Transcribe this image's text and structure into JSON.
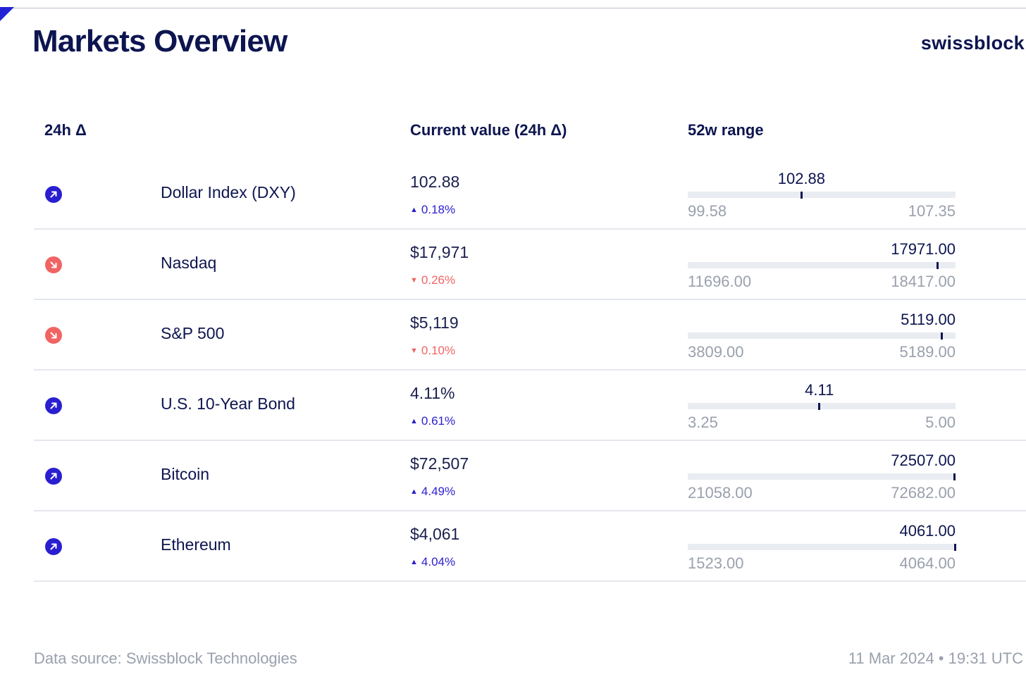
{
  "header": {
    "title": "Markets Overview",
    "logo": "swissblock"
  },
  "columns": {
    "delta": "24h Δ",
    "value": "Current value (24h Δ)",
    "range": "52w range"
  },
  "icons": {
    "up": "arrow-up-right-icon",
    "down": "arrow-down-right-icon"
  },
  "colors": {
    "up": "#2a1fd0",
    "down": "#f06464",
    "text": "#0d1550",
    "muted": "#9aa0ad"
  },
  "chart_data": {
    "type": "table",
    "title": "Markets Overview",
    "rows": [
      {
        "name": "Dollar Index (DXY)",
        "value": "102.88",
        "change": "0.18%",
        "direction": "up",
        "range_min": 99.58,
        "range_max": 107.35,
        "current": 102.88,
        "range_min_label": "99.58",
        "range_max_label": "107.35",
        "current_label": "102.88"
      },
      {
        "name": "Nasdaq",
        "value": "$17,971",
        "change": "0.26%",
        "direction": "down",
        "range_min": 11696.0,
        "range_max": 18417.0,
        "current": 17971.0,
        "range_min_label": "11696.00",
        "range_max_label": "18417.00",
        "current_label": "17971.00"
      },
      {
        "name": "S&P 500",
        "value": "$5,119",
        "change": "0.10%",
        "direction": "down",
        "range_min": 3809.0,
        "range_max": 5189.0,
        "current": 5119.0,
        "range_min_label": "3809.00",
        "range_max_label": "5189.00",
        "current_label": "5119.00"
      },
      {
        "name": "U.S. 10-Year Bond",
        "value": "4.11%",
        "change": "0.61%",
        "direction": "up",
        "range_min": 3.25,
        "range_max": 5.0,
        "current": 4.11,
        "range_min_label": "3.25",
        "range_max_label": "5.00",
        "current_label": "4.11"
      },
      {
        "name": "Bitcoin",
        "value": "$72,507",
        "change": "4.49%",
        "direction": "up",
        "range_min": 21058.0,
        "range_max": 72682.0,
        "current": 72507.0,
        "range_min_label": "21058.00",
        "range_max_label": "72682.00",
        "current_label": "72507.00"
      },
      {
        "name": "Ethereum",
        "value": "$4,061",
        "change": "4.04%",
        "direction": "up",
        "range_min": 1523.0,
        "range_max": 4064.0,
        "current": 4061.0,
        "range_min_label": "1523.00",
        "range_max_label": "4064.00",
        "current_label": "4061.00"
      }
    ]
  },
  "footer": {
    "source": "Data source: Swissblock Technologies",
    "timestamp": "11 Mar 2024 • 19:31 UTC"
  }
}
